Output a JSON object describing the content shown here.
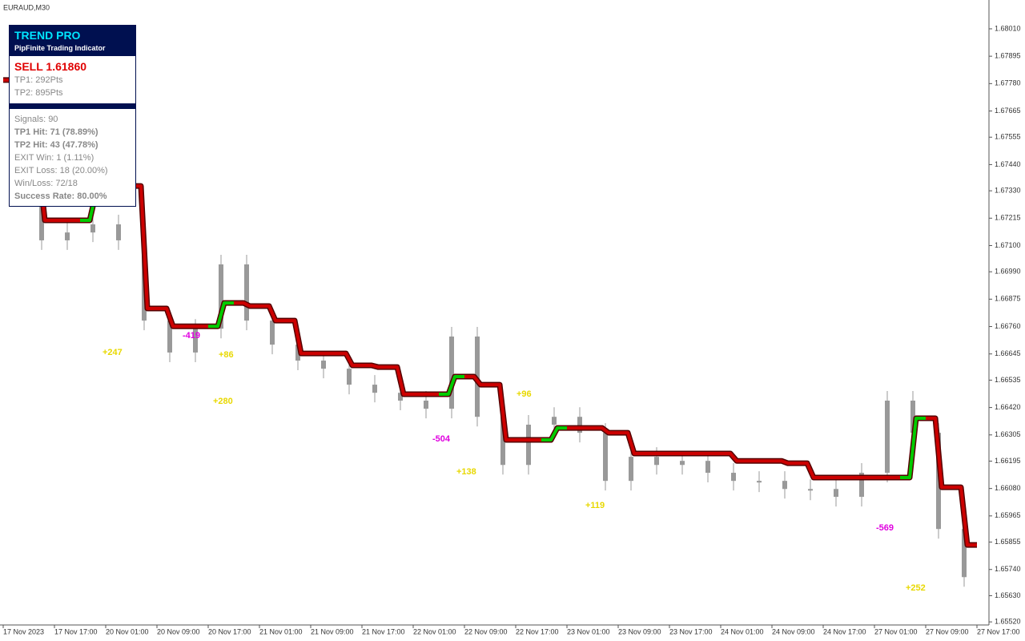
{
  "title": "EURAUD,M30",
  "panel": {
    "name": "TREND PRO",
    "subtitle": "PipFinite Trading Indicator",
    "signal": "SELL 1.61860",
    "tp1": "TP1: 292Pts",
    "tp2": "TP2: 895Pts",
    "stats": [
      "Signals: 90",
      "TP1 Hit: 71 (78.89%)",
      "TP2 Hit: 43 (47.78%)",
      "EXIT Win: 1 (1.11%)",
      "EXIT Loss: 18 (20.00%)",
      "Win/Loss: 72/18",
      "Success Rate: 80.00%"
    ]
  },
  "trade_labels": [
    "+247",
    "+86",
    "+280",
    "-419",
    "+96",
    "-504",
    "+138",
    "+119",
    "-569",
    "+252"
  ],
  "chart_data": {
    "type": "candlestick",
    "categories": [
      "17 Nov 2023",
      null,
      "17 Nov 17:00",
      null,
      "20 Nov 01:00",
      null,
      "20 Nov 09:00",
      null,
      "20 Nov 17:00",
      null,
      "21 Nov 01:00",
      null,
      "21 Nov 09:00",
      null,
      "21 Nov 17:00",
      null,
      "22 Nov 01:00",
      null,
      "22 Nov 09:00",
      null,
      "22 Nov 17:00",
      null,
      "23 Nov 01:00",
      null,
      "23 Nov 09:00",
      null,
      "23 Nov 17:00",
      null,
      "24 Nov 01:00",
      null,
      "24 Nov 09:00",
      null,
      "24 Nov 17:00",
      null,
      "27 Nov 01:00",
      null,
      "27 Nov 09:00",
      null,
      "27 Nov 17:00"
    ],
    "close": [
      1.67626,
      1.67458,
      1.67122,
      1.67155,
      1.67189,
      1.67122,
      1.66785,
      1.66651,
      1.66751,
      1.67021,
      1.66785,
      1.66684,
      1.66617,
      1.66583,
      1.66516,
      1.66482,
      1.66449,
      1.66415,
      1.66718,
      1.66381,
      1.66179,
      1.66348,
      1.66381,
      1.66314,
      1.66112,
      1.66213,
      1.66179,
      1.66196,
      1.66146,
      1.66112,
      1.66112,
      1.66078,
      1.66078,
      1.66045,
      1.66146,
      1.66449,
      1.66314,
      1.6591,
      1.65708
    ],
    "trend": [
      1.67795,
      1.67458,
      1.67206,
      1.67206,
      1.67323,
      1.6735,
      1.66836,
      1.66761,
      1.66761,
      1.66859,
      1.66846,
      1.66785,
      1.66647,
      1.66647,
      1.66597,
      1.6659,
      1.66476,
      1.66476,
      1.6655,
      1.66516,
      1.66284,
      1.66284,
      1.66334,
      1.66334,
      1.66314,
      1.66227,
      1.66227,
      1.66227,
      1.66227,
      1.66196,
      1.66196,
      1.66186,
      1.66126,
      1.66126,
      1.66126,
      1.66126,
      1.66375,
      1.66085,
      1.65843
    ],
    "candle_color": "#999999",
    "up_color": "#00cc00",
    "down_color": "#cc0000",
    "ylim": [
      1.65507,
      1.68131
    ],
    "yticks": [
      {
        "value": 1.6801,
        "label": "1.68010"
      },
      {
        "value": 1.67895,
        "label": "1.67895"
      },
      {
        "value": 1.6778,
        "label": "1.67780"
      },
      {
        "value": 1.67665,
        "label": "1.67665"
      },
      {
        "value": 1.67555,
        "label": "1.67555"
      },
      {
        "value": 1.6744,
        "label": "1.67440"
      },
      {
        "value": 1.6733,
        "label": "1.67330"
      },
      {
        "value": 1.67215,
        "label": "1.67215"
      },
      {
        "value": 1.671,
        "label": "1.67100"
      },
      {
        "value": 1.6699,
        "label": "1.66990"
      },
      1.66875,
      {
        "value": 1.6676,
        "label": "1.66760"
      },
      1.66645,
      1.66535,
      {
        "value": 1.6642,
        "label": "1.66420"
      },
      1.66305,
      1.66195,
      {
        "value": 1.6608,
        "label": "1.66080"
      },
      1.65965,
      1.65855,
      {
        "value": 1.6574,
        "label": "1.65740"
      },
      {
        "value": 1.6563,
        "label": "1.65630"
      },
      {
        "value": 1.6552,
        "label": "1.65520"
      }
    ]
  }
}
